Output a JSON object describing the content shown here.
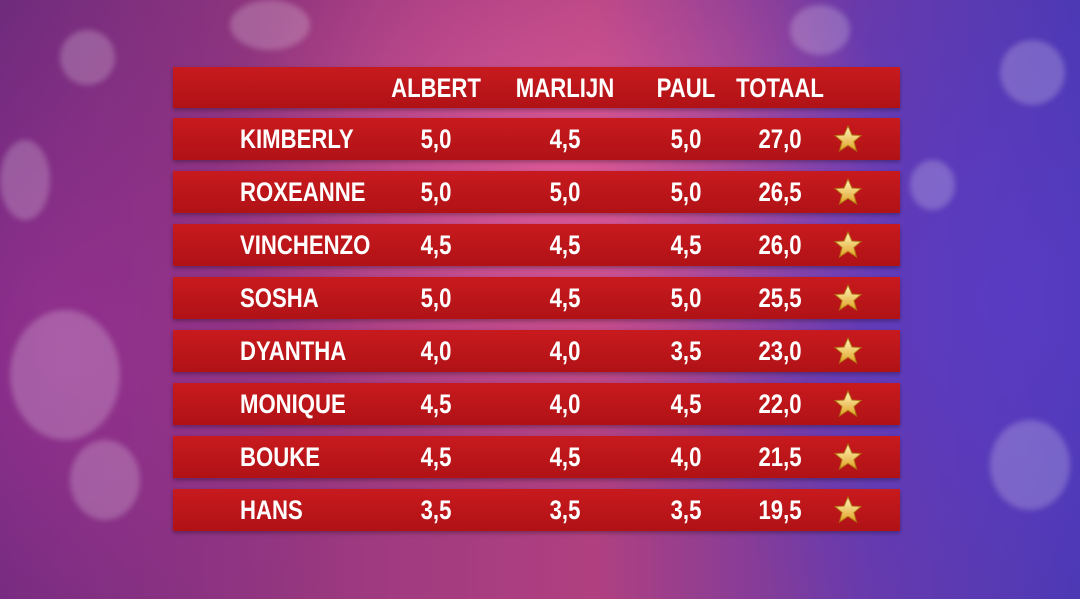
{
  "table": {
    "header": [
      "ALBERT",
      "MARLIJN",
      "PAUL",
      "TOTAAL"
    ],
    "rows": [
      [
        "KIMBERLY",
        "5,0",
        "4,5",
        "5,0",
        "27,0"
      ],
      [
        "ROXEANNE",
        "5,0",
        "5,0",
        "5,0",
        "26,5"
      ],
      [
        "VINCHENZO",
        "4,5",
        "4,5",
        "4,5",
        "26,0"
      ],
      [
        "SOSHA",
        "5,0",
        "4,5",
        "5,0",
        "25,5"
      ],
      [
        "DYANTHA",
        "4,0",
        "4,0",
        "3,5",
        "23,0"
      ],
      [
        "MONIQUE",
        "4,5",
        "4,0",
        "4,5",
        "22,0"
      ],
      [
        "BOUKE",
        "4,5",
        "4,5",
        "4,0",
        "21,5"
      ],
      [
        "HANS",
        "3,5",
        "3,5",
        "3,5",
        "19,5"
      ]
    ]
  }
}
